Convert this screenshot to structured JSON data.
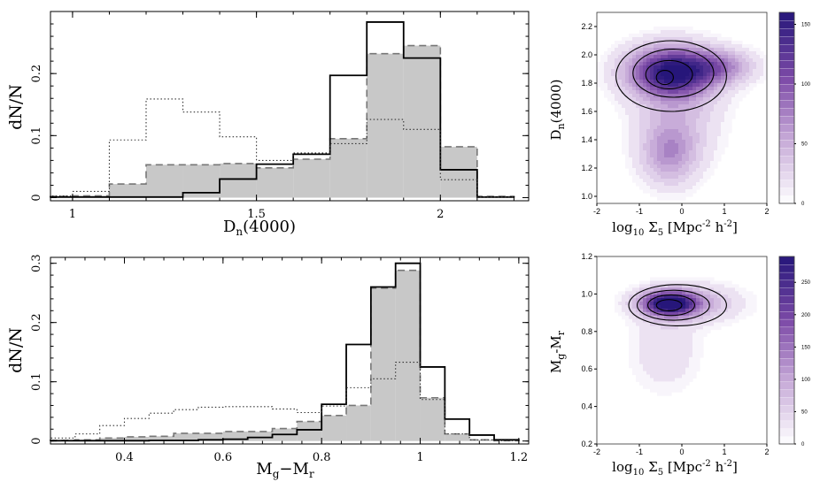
{
  "colors": {
    "shaded_fill": "#c8c8c8",
    "dashed_line": "#777777",
    "solid_line": "#000000",
    "dotted_line": "#333333",
    "density_dark": "#2a1a7a",
    "density_light": "#f4f0f8"
  },
  "labels": {
    "hist1_ylabel": "dN/N",
    "hist1_xlabel_main": "D",
    "hist1_xlabel_sub": "n",
    "hist1_xlabel_rest": "(4000)",
    "hist2_ylabel": "dN/N",
    "hist2_xlabel_p1": "M",
    "hist2_xlabel_s1": "g",
    "hist2_xlabel_p2": "−M",
    "hist2_xlabel_s2": "r",
    "d1_ylabel_main": "D",
    "d1_ylabel_sub": "n",
    "d1_ylabel_rest": "(4000)",
    "d2_ylabel": "M",
    "d2_ylabel_s1": "g",
    "d2_ylabel_p2": "-M",
    "d2_ylabel_s2": "r",
    "density_xlabel_log": "log",
    "density_xlabel_logsub": "10",
    "density_xlabel_sigma": " Σ",
    "density_xlabel_sigmasub": "5",
    "density_xlabel_unit1": " [Mpc",
    "density_xlabel_exp1": "-2",
    "density_xlabel_unit2": " h",
    "density_xlabel_exp2": "-2",
    "density_xlabel_close": "]"
  },
  "chart_data": [
    {
      "type": "bar",
      "name": "hist-dn4000",
      "xlim": [
        0.94,
        2.24
      ],
      "ylim": [
        -0.005,
        0.3
      ],
      "xticks": [
        "1",
        "1.5",
        "2"
      ],
      "xtick_values": [
        1,
        1.5,
        2
      ],
      "yticks": [
        "0",
        "0.1",
        "0.2"
      ],
      "ytick_values": [
        0,
        0.1,
        0.2
      ],
      "bin_edges": [
        0.94,
        1.0,
        1.1,
        1.2,
        1.3,
        1.4,
        1.5,
        1.6,
        1.7,
        1.8,
        1.9,
        2.0,
        2.1,
        2.2
      ],
      "series": [
        {
          "style": "shaded-dashed",
          "values": [
            0.002,
            0.003,
            0.022,
            0.053,
            0.053,
            0.055,
            0.048,
            0.062,
            0.095,
            0.232,
            0.245,
            0.082,
            0.002
          ]
        },
        {
          "style": "solid",
          "values": [
            0.001,
            0.001,
            0.001,
            0.001,
            0.008,
            0.03,
            0.054,
            0.07,
            0.197,
            0.283,
            0.225,
            0.045,
            0.001
          ]
        },
        {
          "style": "dotted",
          "values": [
            0.003,
            0.01,
            0.093,
            0.159,
            0.138,
            0.098,
            0.06,
            0.072,
            0.087,
            0.126,
            0.11,
            0.029,
            0.001
          ]
        }
      ]
    },
    {
      "type": "bar",
      "name": "hist-gr",
      "xlim": [
        0.25,
        1.22
      ],
      "ylim": [
        -0.005,
        0.31
      ],
      "xticks": [
        "0.4",
        "0.6",
        "0.8",
        "1",
        "1.2"
      ],
      "xtick_values": [
        0.4,
        0.6,
        0.8,
        1.0,
        1.2
      ],
      "yticks": [
        "0",
        "0.1",
        "0.2",
        "0.3"
      ],
      "ytick_values": [
        0,
        0.1,
        0.2,
        0.3
      ],
      "bin_edges": [
        0.25,
        0.3,
        0.35,
        0.4,
        0.45,
        0.5,
        0.55,
        0.6,
        0.65,
        0.7,
        0.75,
        0.8,
        0.85,
        0.9,
        0.95,
        1.0,
        1.05,
        1.1,
        1.15,
        1.2
      ],
      "series": [
        {
          "style": "shaded-dashed",
          "values": [
            0.001,
            0.002,
            0.005,
            0.007,
            0.008,
            0.013,
            0.013,
            0.016,
            0.016,
            0.021,
            0.033,
            0.043,
            0.06,
            0.258,
            0.288,
            0.073,
            0.012,
            0.002,
            0.0005
          ]
        },
        {
          "style": "solid",
          "values": [
            0.0005,
            0.0005,
            0.0005,
            0.0005,
            0.001,
            0.001,
            0.002,
            0.003,
            0.006,
            0.011,
            0.019,
            0.062,
            0.163,
            0.26,
            0.3,
            0.125,
            0.037,
            0.01,
            0.002
          ]
        },
        {
          "style": "dotted",
          "values": [
            0.005,
            0.012,
            0.026,
            0.038,
            0.047,
            0.053,
            0.057,
            0.058,
            0.058,
            0.054,
            0.048,
            0.059,
            0.09,
            0.105,
            0.133,
            0.07,
            0.012,
            0.002,
            0.0005
          ]
        }
      ]
    },
    {
      "type": "heatmap",
      "name": "density-dn4000",
      "xlim": [
        -2,
        2
      ],
      "ylim": [
        0.95,
        2.3
      ],
      "xticks": [
        "-2",
        "-1",
        "0",
        "1",
        "2"
      ],
      "xtick_values": [
        -2,
        -1,
        0,
        1,
        2
      ],
      "yticks": [
        "1.0",
        "1.2",
        "1.4",
        "1.6",
        "1.8",
        "2.0",
        "2.2"
      ],
      "ytick_values": [
        1.0,
        1.2,
        1.4,
        1.6,
        1.8,
        2.0,
        2.2
      ],
      "colorbar_ticks": [
        "0",
        "50",
        "100",
        "150"
      ],
      "colorbar_values": [
        0,
        50,
        100,
        150
      ],
      "colorbar_max": 160,
      "blobs": [
        {
          "cx": -0.25,
          "cy": 1.88,
          "sx": 0.7,
          "sy": 0.12,
          "amp": 150
        },
        {
          "cx": 0.9,
          "cy": 1.92,
          "sx": 0.55,
          "sy": 0.08,
          "amp": 60
        },
        {
          "cx": -0.3,
          "cy": 1.3,
          "sx": 0.45,
          "sy": 0.15,
          "amp": 55
        },
        {
          "cx": -0.1,
          "cy": 1.6,
          "sx": 0.7,
          "sy": 0.25,
          "amp": 35
        }
      ],
      "contours": [
        {
          "cx": -0.25,
          "cy": 1.85,
          "rx": 1.3,
          "ry": 0.25,
          "tilt": 0
        },
        {
          "cx": -0.2,
          "cy": 1.87,
          "rx": 0.95,
          "ry": 0.17,
          "tilt": 0
        },
        {
          "cx": -0.3,
          "cy": 1.86,
          "rx": 0.55,
          "ry": 0.1,
          "tilt": 0
        },
        {
          "cx": -0.4,
          "cy": 1.84,
          "rx": 0.2,
          "ry": 0.05,
          "tilt": 0
        }
      ]
    },
    {
      "type": "heatmap",
      "name": "density-gr",
      "xlim": [
        -2,
        2
      ],
      "ylim": [
        0.2,
        1.2
      ],
      "xticks": [
        "-2",
        "-1",
        "0",
        "1",
        "2"
      ],
      "xtick_values": [
        -2,
        -1,
        0,
        1,
        2
      ],
      "yticks": [
        "0.2",
        "0.4",
        "0.6",
        "0.8",
        "1.0",
        "1.2"
      ],
      "ytick_values": [
        0.2,
        0.4,
        0.6,
        0.8,
        1.0,
        1.2
      ],
      "colorbar_ticks": [
        "0",
        "50",
        "100",
        "150",
        "200",
        "250"
      ],
      "colorbar_values": [
        0,
        50,
        100,
        150,
        200,
        250
      ],
      "colorbar_max": 290,
      "blobs": [
        {
          "cx": -0.3,
          "cy": 0.95,
          "sx": 0.45,
          "sy": 0.045,
          "amp": 280
        },
        {
          "cx": 0.2,
          "cy": 0.95,
          "sx": 0.8,
          "sy": 0.07,
          "amp": 80
        },
        {
          "cx": -0.4,
          "cy": 0.7,
          "sx": 0.55,
          "sy": 0.15,
          "amp": 40
        }
      ],
      "contours": [
        {
          "cx": -0.1,
          "cy": 0.94,
          "rx": 1.15,
          "ry": 0.11,
          "tilt": 0
        },
        {
          "cx": -0.2,
          "cy": 0.94,
          "rx": 0.85,
          "ry": 0.08,
          "tilt": 0
        },
        {
          "cx": -0.25,
          "cy": 0.94,
          "rx": 0.55,
          "ry": 0.055,
          "tilt": 0
        },
        {
          "cx": -0.3,
          "cy": 0.94,
          "rx": 0.3,
          "ry": 0.03,
          "tilt": 0
        }
      ]
    }
  ]
}
